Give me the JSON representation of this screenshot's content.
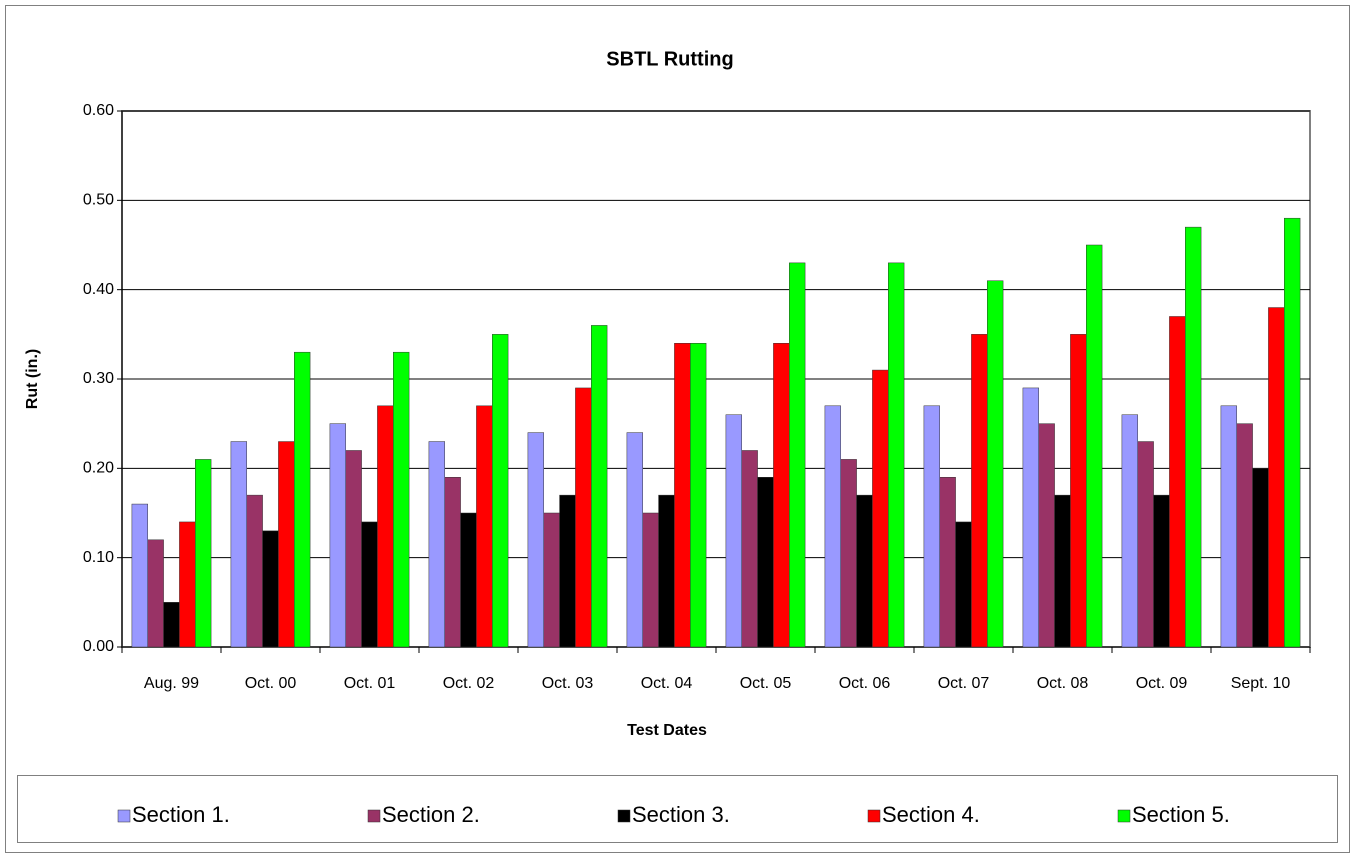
{
  "chart_data": {
    "type": "bar",
    "title": "SBTL Rutting",
    "x_label": "Test Dates",
    "y_label": "Rut (in.)",
    "categories": [
      "Aug. 99",
      "Oct. 00",
      "Oct. 01",
      "Oct. 02",
      "Oct. 03",
      "Oct. 04",
      "Oct. 05",
      "Oct. 06",
      "Oct. 07",
      "Oct. 08",
      "Oct. 09",
      "Sept. 10"
    ],
    "series": [
      {
        "name": "Section 1.",
        "color": "#9999ff",
        "values": [
          0.16,
          0.23,
          0.25,
          0.23,
          0.24,
          0.24,
          0.26,
          0.27,
          0.27,
          0.29,
          0.26,
          0.27
        ]
      },
      {
        "name": "Section 2.",
        "color": "#993366",
        "values": [
          0.12,
          0.17,
          0.22,
          0.19,
          0.15,
          0.15,
          0.22,
          0.21,
          0.19,
          0.25,
          0.23,
          0.25
        ]
      },
      {
        "name": "Section 3.",
        "color": "#000000",
        "values": [
          0.05,
          0.13,
          0.14,
          0.15,
          0.17,
          0.17,
          0.19,
          0.17,
          0.14,
          0.17,
          0.17,
          0.2
        ]
      },
      {
        "name": "Section 4.",
        "color": "#ff0000",
        "values": [
          0.14,
          0.23,
          0.27,
          0.27,
          0.29,
          0.34,
          0.34,
          0.31,
          0.35,
          0.35,
          0.37,
          0.38
        ]
      },
      {
        "name": "Section 5.",
        "color": "#00ff00",
        "values": [
          0.21,
          0.33,
          0.33,
          0.35,
          0.36,
          0.34,
          0.43,
          0.43,
          0.41,
          0.45,
          0.47,
          0.48
        ]
      }
    ],
    "ylim": [
      0,
      0.6
    ],
    "yticks": [
      {
        "value": 0,
        "label": "0.00"
      },
      {
        "value": 0.1,
        "label": "0.10"
      },
      {
        "value": 0.2,
        "label": "0.20"
      },
      {
        "value": 0.3,
        "label": "0.30"
      },
      {
        "value": 0.4,
        "label": "0.40"
      },
      {
        "value": 0.5,
        "label": "0.50"
      },
      {
        "value": 0.6,
        "label": "0.60"
      }
    ],
    "grid": true,
    "legend": "bottom"
  }
}
